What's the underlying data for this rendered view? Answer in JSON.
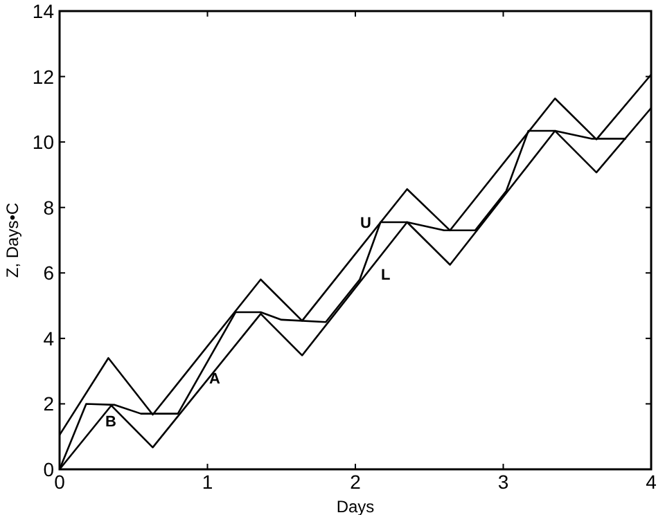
{
  "chart_data": {
    "type": "line",
    "xlabel": "Days",
    "ylabel": "Z, Days•C",
    "xlim": [
      0,
      4
    ],
    "ylim": [
      0,
      14
    ],
    "xticks": [
      0,
      1,
      2,
      3,
      4
    ],
    "yticks": [
      0,
      2,
      4,
      6,
      8,
      10,
      12,
      14
    ],
    "grid": false,
    "marker": "none",
    "line_style": "solid",
    "series": [
      {
        "name": "U",
        "color": "#000000",
        "x": [
          0,
          0.33,
          0.63,
          1.36,
          1.64,
          2.35,
          2.64,
          3.35,
          3.63,
          4
        ],
        "values": [
          1.05,
          3.4,
          1.67,
          5.8,
          4.54,
          8.56,
          7.3,
          11.33,
          10.08,
          12.06
        ]
      },
      {
        "name": "L",
        "color": "#000000",
        "x": [
          0,
          0.35,
          0.63,
          1.36,
          1.64,
          2.35,
          2.64,
          3.35,
          3.63,
          4
        ],
        "values": [
          0,
          1.95,
          0.67,
          4.75,
          3.48,
          7.55,
          6.25,
          10.34,
          9.07,
          11.04
        ]
      },
      {
        "color": "#000000",
        "x": [
          0,
          0.18,
          0.37,
          0.55,
          0.8,
          1.19,
          1.36,
          1.5,
          1.8,
          2.03,
          2.17,
          2.35,
          2.6,
          2.81,
          3.02,
          3.17,
          3.35,
          3.6,
          3.83
        ],
        "values": [
          0,
          2.0,
          1.97,
          1.7,
          1.7,
          4.8,
          4.8,
          4.57,
          4.5,
          5.8,
          7.55,
          7.55,
          7.3,
          7.3,
          8.5,
          10.34,
          10.34,
          10.1,
          10.1
        ]
      }
    ],
    "annotations": [
      "A",
      "B"
    ]
  }
}
